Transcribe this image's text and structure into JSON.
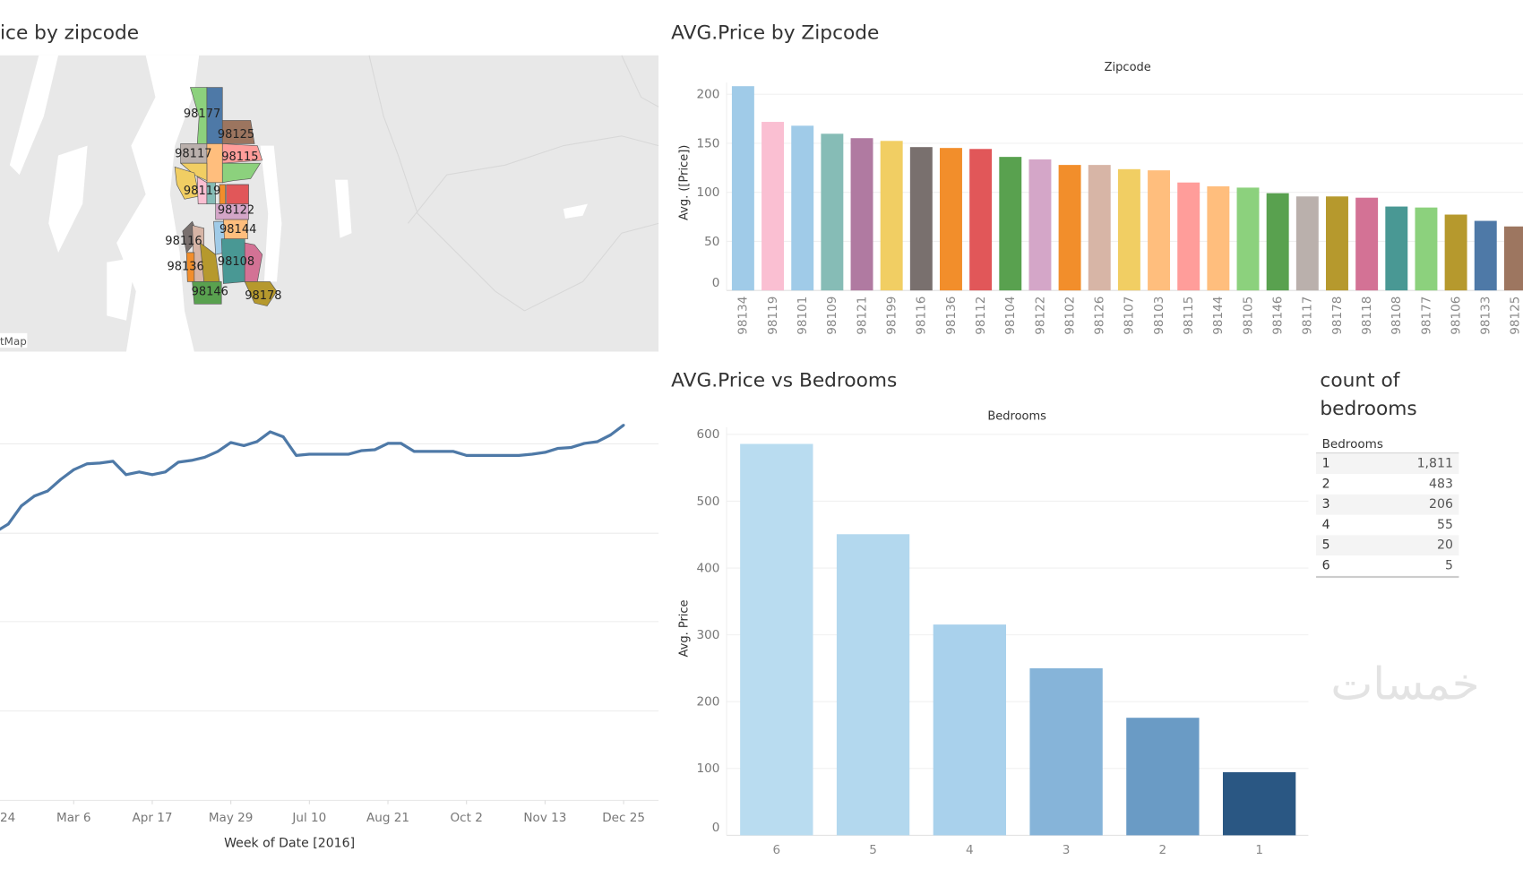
{
  "map_panel": {
    "title": "ice by zipcode",
    "attribution": "tMap",
    "zip_labels": [
      "98177",
      "98125",
      "98117",
      "98115",
      "98119",
      "98122",
      "98144",
      "98116",
      "98136",
      "98108",
      "98146",
      "98178"
    ]
  },
  "zip_chart": {
    "title": "AVG.Price by Zipcode"
  },
  "bedroom_chart": {
    "title": "AVG.Price vs Bedrooms"
  },
  "count_table": {
    "title_line1": "count of",
    "title_line2": "bedrooms",
    "header": "Bedrooms",
    "rows": [
      {
        "bedrooms": "1",
        "count": "1,811"
      },
      {
        "bedrooms": "2",
        "count": "483"
      },
      {
        "bedrooms": "3",
        "count": "206"
      },
      {
        "bedrooms": "4",
        "count": "55"
      },
      {
        "bedrooms": "5",
        "count": "20"
      },
      {
        "bedrooms": "6",
        "count": "5"
      }
    ]
  },
  "watermark": "خمسات",
  "chart_data": [
    {
      "type": "line",
      "xlabel": "Week of Date [2016]",
      "xtick_labels": [
        "24",
        "Mar 6",
        "Apr 17",
        "May 29",
        "Jul 10",
        "Aug 21",
        "Oct 2",
        "Nov 13",
        "Dec 25"
      ],
      "grid": true,
      "color": "#4e79a7",
      "x": [
        "Jan 24",
        "Jan 31",
        "Feb 7",
        "Feb 14",
        "Feb 21",
        "Feb 28",
        "Mar 6",
        "Mar 13",
        "Mar 20",
        "Mar 27",
        "Apr 3",
        "Apr 10",
        "Apr 17",
        "Apr 24",
        "May 1",
        "May 8",
        "May 15",
        "May 22",
        "May 29",
        "Jun 5",
        "Jun 12",
        "Jun 19",
        "Jun 26",
        "Jul 3",
        "Jul 10",
        "Jul 17",
        "Jul 24",
        "Jul 31",
        "Aug 7",
        "Aug 14",
        "Aug 21",
        "Aug 28",
        "Sep 4",
        "Sep 11",
        "Sep 18",
        "Sep 25",
        "Oct 2",
        "Oct 9",
        "Oct 16",
        "Oct 23",
        "Oct 30",
        "Nov 6",
        "Nov 13",
        "Nov 20",
        "Nov 27",
        "Dec 4",
        "Dec 11",
        "Dec 18",
        "Dec 25"
      ],
      "values": [
        120.2,
        122.0,
        126.1,
        128.3,
        129.4,
        132.0,
        134.2,
        135.5,
        135.7,
        136.1,
        133.1,
        133.7,
        133.1,
        133.7,
        135.9,
        136.3,
        137.0,
        138.3,
        140.3,
        139.6,
        140.5,
        142.7,
        141.6,
        137.4,
        137.7,
        137.7,
        137.7,
        137.7,
        138.5,
        138.7,
        140.1,
        140.1,
        138.3,
        138.3,
        138.3,
        138.3,
        137.4,
        137.4,
        137.4,
        137.4,
        137.4,
        137.7,
        138.1,
        139.0,
        139.2,
        140.1,
        140.5,
        142.0,
        144.2
      ]
    },
    {
      "type": "bar",
      "title": "Zipcode",
      "ylabel": "Avg. ([Price])",
      "ylim": [
        0,
        210
      ],
      "yticks": [
        0,
        50,
        100,
        150,
        200
      ],
      "grid": true,
      "categories": [
        "98134",
        "98119",
        "98101",
        "98109",
        "98121",
        "98199",
        "98116",
        "98136",
        "98112",
        "98104",
        "98122",
        "98102",
        "98126",
        "98107",
        "98103",
        "98115",
        "98144",
        "98105",
        "98146",
        "98117",
        "98178",
        "98118",
        "98108",
        "98177",
        "98106",
        "98133",
        "98125"
      ],
      "values": [
        208.2,
        171.8,
        167.9,
        159.7,
        155.2,
        152.4,
        146.1,
        145.2,
        144.2,
        136.1,
        133.6,
        127.9,
        127.9,
        123.6,
        122.4,
        110.0,
        106.1,
        104.8,
        99.1,
        95.8,
        95.8,
        94.5,
        85.5,
        84.5,
        77.3,
        70.9,
        65.2
      ],
      "colors": [
        "#a0cbe8",
        "#fabfd2",
        "#a0cbe8",
        "#86bcb6",
        "#b07aa1",
        "#f1ce63",
        "#79706e",
        "#f28e2b",
        "#e15759",
        "#59a14f",
        "#d4a6c8",
        "#f28e2b",
        "#d7b5a6",
        "#f1ce63",
        "#ffbe7d",
        "#ff9d9a",
        "#ffbe7d",
        "#8cd17d",
        "#59a14f",
        "#bab0ac",
        "#b6992d",
        "#d37295",
        "#499894",
        "#8cd17d",
        "#b6992d",
        "#4e79a7",
        "#9d7660"
      ]
    },
    {
      "type": "bar",
      "title": "Bedrooms",
      "ylabel": "Avg. Price",
      "ylim": [
        0,
        600
      ],
      "yticks": [
        0,
        100,
        200,
        300,
        400,
        500,
        600
      ],
      "grid": true,
      "categories": [
        "6",
        "5",
        "4",
        "3",
        "2",
        "1"
      ],
      "values": [
        585.7,
        450.6,
        315.4,
        250.0,
        175.9,
        94.5
      ],
      "colors": [
        "#b9dcf0",
        "#b3d8ee",
        "#a9d1ec",
        "#86b4d9",
        "#6a9bc5",
        "#2a5783"
      ]
    }
  ]
}
